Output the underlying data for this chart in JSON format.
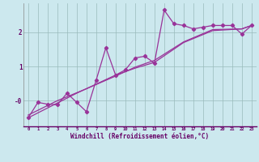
{
  "title": "",
  "xlabel": "Windchill (Refroidissement éolien,°C)",
  "ylabel": "",
  "bg_color": "#cce8ee",
  "line_color": "#993399",
  "grid_color": "#99bbbb",
  "xlim": [
    -0.5,
    23.5
  ],
  "ylim": [
    -0.75,
    2.85
  ],
  "xticks": [
    0,
    1,
    2,
    3,
    4,
    5,
    6,
    7,
    8,
    9,
    10,
    11,
    12,
    13,
    14,
    15,
    16,
    17,
    18,
    19,
    20,
    21,
    22,
    23
  ],
  "yticks": [
    0.0,
    1.0,
    2.0
  ],
  "ytick_labels": [
    "-0",
    "1",
    "2"
  ],
  "series": [
    [
      0,
      -0.5
    ],
    [
      1,
      -0.05
    ],
    [
      2,
      -0.1
    ],
    [
      3,
      -0.12
    ],
    [
      4,
      0.22
    ],
    [
      5,
      -0.05
    ],
    [
      6,
      -0.32
    ],
    [
      7,
      0.6
    ],
    [
      8,
      1.55
    ],
    [
      9,
      0.75
    ],
    [
      10,
      0.9
    ],
    [
      11,
      1.25
    ],
    [
      12,
      1.3
    ],
    [
      13,
      1.1
    ],
    [
      14,
      2.65
    ],
    [
      15,
      2.25
    ],
    [
      16,
      2.2
    ],
    [
      17,
      2.1
    ],
    [
      18,
      2.15
    ],
    [
      19,
      2.2
    ],
    [
      20,
      2.2
    ],
    [
      21,
      2.2
    ],
    [
      22,
      1.95
    ],
    [
      23,
      2.2
    ]
  ],
  "trend1": [
    [
      0,
      -0.5
    ],
    [
      5,
      0.22
    ],
    [
      9,
      0.75
    ],
    [
      11,
      0.95
    ],
    [
      13,
      1.12
    ],
    [
      16,
      1.7
    ],
    [
      19,
      2.05
    ],
    [
      22,
      2.1
    ],
    [
      23,
      2.2
    ]
  ],
  "trend2": [
    [
      0,
      -0.42
    ],
    [
      3,
      0.0
    ],
    [
      6,
      0.35
    ],
    [
      9,
      0.72
    ],
    [
      11,
      0.98
    ],
    [
      13,
      1.18
    ],
    [
      16,
      1.72
    ],
    [
      19,
      2.08
    ],
    [
      22,
      2.1
    ],
    [
      23,
      2.2
    ]
  ]
}
